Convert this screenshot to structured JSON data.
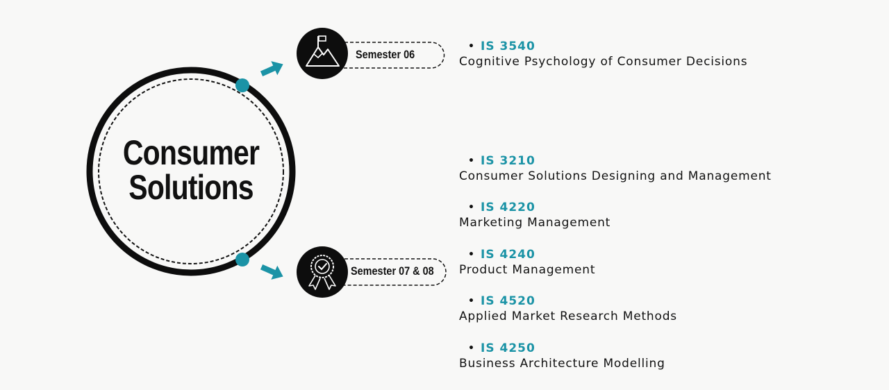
{
  "title": {
    "line1": "Consumer",
    "line2": "Solutions"
  },
  "colors": {
    "accent": "#1b93a6",
    "ink": "#111111",
    "background": "#f8f8f7"
  },
  "semesters": [
    {
      "label": "Semester 06",
      "icon": "mountain-flag-icon"
    },
    {
      "label": "Semester 07 & 08",
      "icon": "award-ribbon-icon"
    }
  ],
  "courses": [
    {
      "code": "IS 3540",
      "name": "Cognitive Psychology of Consumer Decisions"
    },
    {
      "code": "IS 3210",
      "name": "Consumer Solutions Designing and Management"
    },
    {
      "code": "IS 4220",
      "name": "Marketing Management"
    },
    {
      "code": "IS 4240",
      "name": "Product Management"
    },
    {
      "code": "IS 4520",
      "name": "Applied Market Research Methods"
    },
    {
      "code": "IS 4250",
      "name": "Business Architecture Modelling"
    }
  ]
}
